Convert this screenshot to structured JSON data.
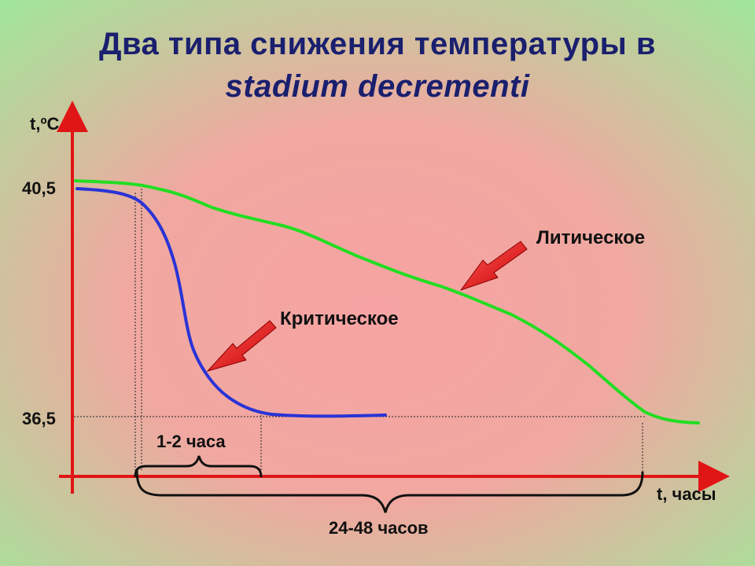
{
  "title": {
    "line1": "Два типа снижения температуры в",
    "line2": "stadium decrementi"
  },
  "axes": {
    "y_label": "t,ºC",
    "x_label": "t, часы",
    "y_ticks": [
      "40,5",
      "36,5"
    ]
  },
  "curves": {
    "critical": {
      "label": "Критическое",
      "color": "#2a33d6"
    },
    "lytic": {
      "label": "Литическое",
      "color": "#22dd22"
    }
  },
  "intervals": {
    "short": "1-2 часа",
    "long": "24-48 часов"
  },
  "colors": {
    "axis": "#e01515",
    "arrow": "#e01515",
    "title": "#1a1f6e",
    "background_center": "#f7a3a3",
    "background_edges": "#9ee89a"
  }
}
